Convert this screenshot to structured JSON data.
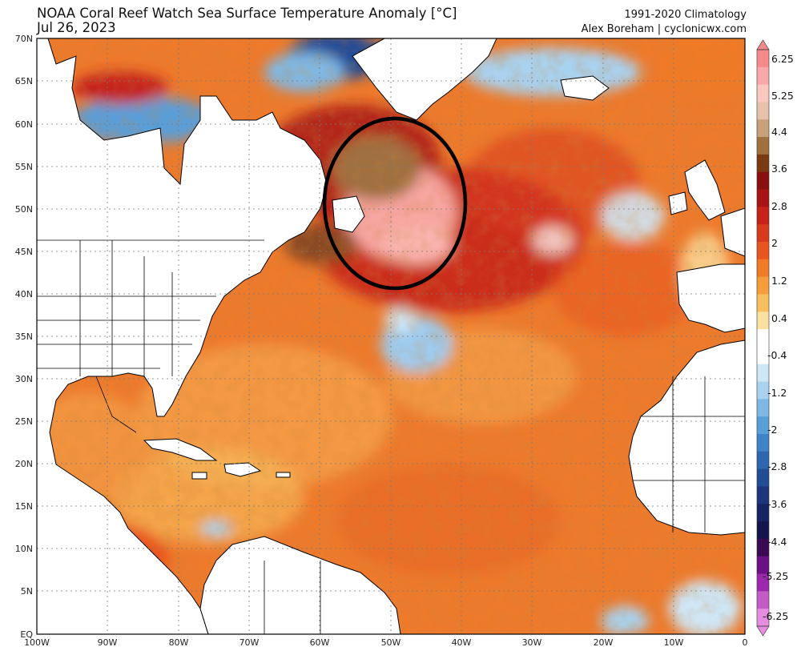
{
  "header": {
    "title_line1": "NOAA Coral Reef Watch Sea Surface Temperature Anomaly [°C]",
    "title_line2": "Jul 26, 2023",
    "credit_line1": "1991-2020 Climatology",
    "credit_line2": "Alex Boreham | cyclonicwx.com"
  },
  "map": {
    "lat_labels": [
      "70N",
      "65N",
      "60N",
      "55N",
      "50N",
      "45N",
      "40N",
      "35N",
      "30N",
      "25N",
      "20N",
      "15N",
      "10N",
      "5N",
      "EQ"
    ],
    "lon_labels": [
      "100W",
      "90W",
      "80W",
      "70W",
      "60W",
      "50W",
      "40W",
      "30W",
      "20W",
      "10W",
      "0"
    ],
    "highlight": "ellipse around Newfoundland / Grand Banks marine heatwave"
  },
  "colorbar": {
    "labels": [
      "6.25",
      "5.25",
      "4.4",
      "3.6",
      "2.8",
      "2",
      "1.2",
      "0.4",
      "-0.4",
      "-1.2",
      "-2",
      "-2.8",
      "-3.6",
      "-4.4",
      "-5.25",
      "-6.25"
    ],
    "colors_top_to_bottom": [
      "#f58a8a",
      "#f9a9a9",
      "#fbc8c0",
      "#e6c2a8",
      "#c8a07a",
      "#a0703f",
      "#7a3a12",
      "#8a1010",
      "#a81414",
      "#c4221a",
      "#d83a1e",
      "#e8551f",
      "#f07a26",
      "#f59d3a",
      "#f8bf5e",
      "#fbe0a0",
      "#ffffff",
      "#ffffff",
      "#cfe6f5",
      "#a9d2ef",
      "#7fb8e4",
      "#5a9ed8",
      "#3f82c7",
      "#2e66b0",
      "#234c96",
      "#1c357c",
      "#162463",
      "#14154d",
      "#3a0a52",
      "#6b1085",
      "#9b28ad",
      "#c45cc6",
      "#e58de0"
    ],
    "ocean_colors": {
      "warm": "#ee7a2c",
      "warmer": "#d84a1f",
      "hot": "#a81414",
      "extreme": "#f7a5a0",
      "brown": "#8a4a20",
      "cool": "#9fcbed",
      "cold": "#3f82c7"
    }
  }
}
